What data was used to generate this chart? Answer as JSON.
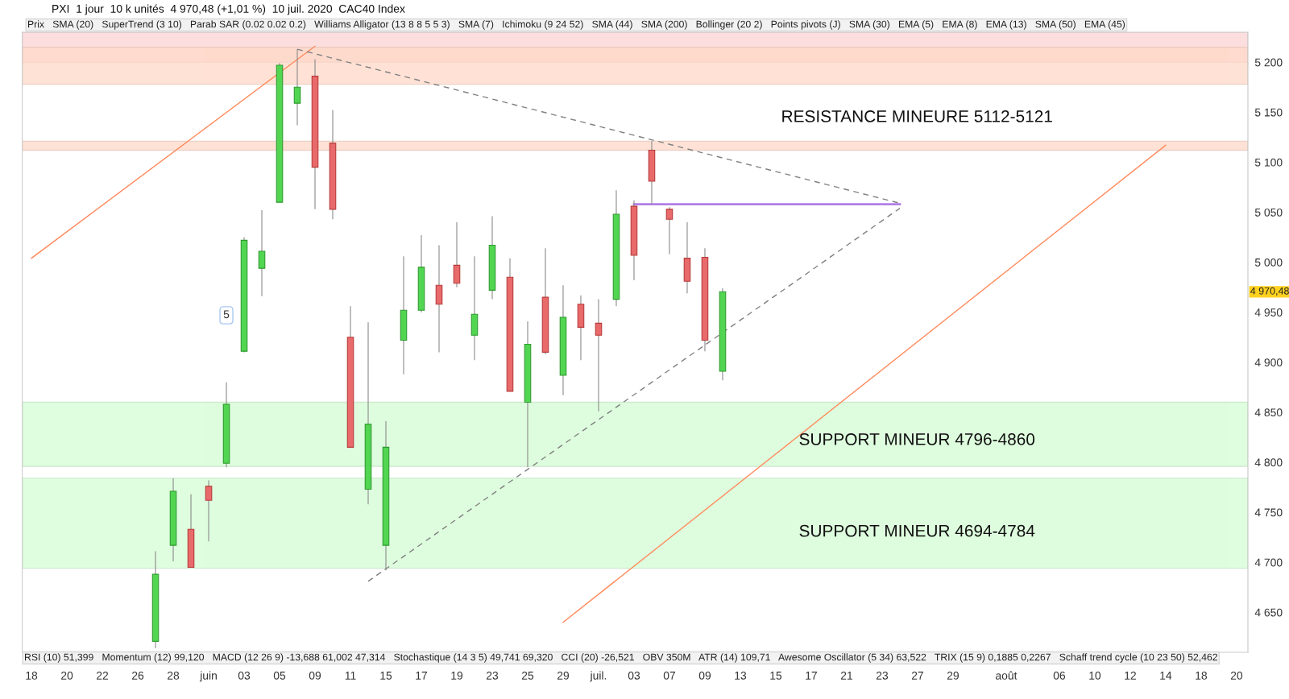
{
  "chart_data": {
    "type": "candlestick",
    "title": "PXI  1 jour  10 k unités  4 970,48 (+1,01 %)  10 juil. 2020  CAC40 Index",
    "categories": [
      "18",
      null,
      "20",
      null,
      "22",
      null,
      "26",
      null,
      "28",
      null,
      "juin",
      null,
      "03",
      null,
      "05",
      null,
      "09",
      null,
      "11",
      null,
      "15",
      null,
      "17",
      null,
      "19",
      null,
      "23",
      null,
      "25",
      null,
      "29",
      null,
      "juil.",
      null,
      "03",
      null,
      "07",
      null,
      "09",
      null,
      "13",
      null,
      "15",
      null,
      "17",
      null,
      "21",
      null,
      "23",
      null,
      "27",
      null,
      "29",
      null,
      null,
      "août",
      null,
      null,
      "06",
      null,
      "10",
      null,
      "12",
      null,
      "14",
      null,
      "18",
      null,
      "20"
    ],
    "ohlc": [
      null,
      null,
      null,
      null,
      null,
      null,
      null,
      [
        4621,
        4711,
        4614,
        4688
      ],
      [
        4717,
        4784,
        4701,
        4771
      ],
      [
        4733,
        4768,
        4695,
        4695
      ],
      [
        4776,
        4782,
        4721,
        4762
      ],
      [
        4799,
        4880,
        4795,
        4858
      ],
      [
        4911,
        5025,
        4910,
        5022
      ],
      [
        4994,
        5052,
        4966,
        5011
      ],
      [
        5060,
        5199,
        5060,
        5197
      ],
      [
        5159,
        5213,
        5137,
        5175
      ],
      [
        5186,
        5203,
        5053,
        5095
      ],
      [
        5119,
        5152,
        5043,
        5053
      ],
      [
        4925,
        4956,
        4815,
        4815
      ],
      [
        4773,
        4940,
        4758,
        4838
      ],
      [
        4717,
        4841,
        4692,
        4815
      ],
      [
        4922,
        5006,
        4888,
        4952
      ],
      [
        4952,
        5027,
        4950,
        4995
      ],
      [
        4977,
        5017,
        4910,
        4958
      ],
      [
        4997,
        5040,
        4975,
        4979
      ],
      [
        4927,
        5006,
        4902,
        4948
      ],
      [
        4972,
        5046,
        4963,
        5017
      ],
      [
        4985,
        5004,
        4871,
        4871
      ],
      [
        4860,
        4941,
        4795,
        4918
      ],
      [
        4965,
        5014,
        4908,
        4910
      ],
      [
        4887,
        4977,
        4867,
        4945
      ],
      [
        4958,
        4967,
        4902,
        4935
      ],
      [
        4939,
        4963,
        4851,
        4927
      ],
      [
        4963,
        5072,
        4956,
        5048
      ],
      [
        5056,
        5062,
        4982,
        5007
      ],
      [
        5112,
        5121,
        5058,
        5081
      ],
      [
        5053,
        5055,
        5008,
        5043
      ],
      [
        5004,
        5040,
        4969,
        4981
      ],
      [
        5005,
        5014,
        4911,
        4922
      ],
      [
        4891,
        4974,
        4882,
        4970.48
      ],
      null,
      null,
      null,
      null,
      null,
      null,
      null,
      null,
      null,
      null,
      null,
      null,
      null,
      null,
      null,
      null,
      null,
      null,
      null,
      null,
      null,
      null,
      null,
      null,
      null,
      null,
      null,
      null,
      null
    ],
    "series": [
      {
        "type": "line",
        "color": "#ff8a5c",
        "line_style": "solid",
        "values": [
          5004,
          null,
          null,
          null,
          null,
          null,
          null,
          null,
          null,
          null,
          null,
          null,
          null,
          null,
          null,
          null,
          5216,
          null,
          null,
          null,
          null,
          null,
          null,
          null,
          null,
          null,
          null,
          null,
          null,
          null,
          null,
          null,
          null,
          null,
          null,
          null,
          null,
          null,
          null,
          null,
          null,
          null,
          null,
          null,
          null,
          null,
          null,
          null,
          null,
          null,
          null,
          null,
          null,
          null,
          null,
          null,
          null,
          null,
          null,
          null,
          null,
          null,
          null,
          null,
          null,
          null,
          null,
          null,
          null
        ]
      },
      {
        "type": "line",
        "color": "#ff8a5c",
        "line_style": "solid",
        "values": [
          null,
          null,
          null,
          null,
          null,
          null,
          null,
          null,
          null,
          null,
          null,
          null,
          null,
          null,
          null,
          null,
          null,
          null,
          null,
          null,
          null,
          null,
          null,
          null,
          null,
          null,
          null,
          null,
          null,
          null,
          4640,
          null,
          null,
          null,
          null,
          null,
          null,
          null,
          null,
          null,
          null,
          null,
          null,
          null,
          null,
          null,
          null,
          null,
          null,
          null,
          null,
          null,
          null,
          null,
          null,
          null,
          null,
          null,
          null,
          null,
          null,
          null,
          null,
          null,
          5117,
          null,
          null,
          null,
          null
        ]
      },
      {
        "type": "line",
        "color": "#808080",
        "line_style": "dashed",
        "values": [
          null,
          null,
          null,
          null,
          null,
          null,
          null,
          null,
          null,
          null,
          null,
          null,
          null,
          null,
          null,
          5213,
          null,
          null,
          null,
          null,
          null,
          null,
          null,
          null,
          null,
          null,
          null,
          null,
          null,
          null,
          null,
          null,
          null,
          null,
          null,
          null,
          null,
          null,
          null,
          null,
          null,
          null,
          null,
          null,
          null,
          null,
          null,
          null,
          null,
          5059,
          null,
          null,
          null,
          null,
          null,
          null,
          null,
          null,
          null,
          null,
          null,
          null,
          null,
          null,
          null,
          null,
          null,
          null,
          null
        ]
      },
      {
        "type": "line",
        "color": "#808080",
        "line_style": "dashed",
        "values": [
          null,
          null,
          null,
          null,
          null,
          null,
          null,
          null,
          null,
          null,
          null,
          null,
          null,
          null,
          null,
          null,
          null,
          null,
          null,
          4681,
          null,
          null,
          null,
          null,
          null,
          null,
          null,
          null,
          null,
          null,
          null,
          null,
          null,
          null,
          null,
          null,
          null,
          null,
          null,
          null,
          null,
          null,
          null,
          null,
          null,
          null,
          null,
          null,
          null,
          5054,
          null,
          null,
          null,
          null,
          null,
          null,
          null,
          null,
          null,
          null,
          null,
          null,
          null,
          null,
          null,
          null,
          null,
          null,
          null
        ]
      },
      {
        "type": "line",
        "color": "#b07fe6",
        "line_style": "solid",
        "values": [
          null,
          null,
          null,
          null,
          null,
          null,
          null,
          null,
          null,
          null,
          null,
          null,
          null,
          null,
          null,
          null,
          null,
          null,
          null,
          null,
          null,
          null,
          null,
          null,
          null,
          null,
          null,
          null,
          null,
          null,
          null,
          null,
          null,
          null,
          5058,
          null,
          null,
          null,
          null,
          null,
          null,
          null,
          null,
          null,
          null,
          null,
          null,
          null,
          null,
          5058,
          null,
          null,
          null,
          null,
          null,
          null,
          null,
          null,
          null,
          null,
          null,
          null,
          null,
          null,
          null,
          null,
          null,
          null,
          null
        ]
      }
    ],
    "ylim": [
      4610,
      5230
    ],
    "yticks": [
      {
        "value": 4650,
        "label": "4 650"
      },
      {
        "value": 4700,
        "label": "4 700"
      },
      {
        "value": 4750,
        "label": "4 750"
      },
      {
        "value": 4800,
        "label": "4 800"
      },
      {
        "value": 4850,
        "label": "4 850"
      },
      {
        "value": 4900,
        "label": "4 900"
      },
      {
        "value": 4950,
        "label": "4 950"
      },
      {
        "value": 5000,
        "label": "5 000"
      },
      {
        "value": 5050,
        "label": "5 050"
      },
      {
        "value": 5100,
        "label": "5 100"
      },
      {
        "value": 5150,
        "label": "5 150"
      },
      {
        "value": 5200,
        "label": "5 200"
      }
    ],
    "bands": [
      {
        "axis": "y",
        "from": 5200,
        "to": 5230,
        "color": "#fdd3d3"
      },
      {
        "axis": "y",
        "from": 5178,
        "to": 5215,
        "color": "#ffd9c8"
      },
      {
        "axis": "y",
        "from": 5112,
        "to": 5121,
        "label": "RESISTANCE MINEURE 5112-5121",
        "color": "#ffd9c8"
      },
      {
        "axis": "y",
        "from": 4796,
        "to": 4860,
        "label": "SUPPORT MINEUR 4796-4860",
        "color": "#d4fdd4"
      },
      {
        "axis": "y",
        "from": 4694,
        "to": 4784,
        "label": "SUPPORT MINEUR 4694-4784",
        "color": "#d4fdd4"
      }
    ],
    "annotations": [
      "Prix   SMA (20)   SuperTrend (3 10)   Parab SAR (0.02 0.02 0.2)   Williams Alligator (13 8 8 5 5 3)   SMA (7)   Ichimoku (9 24 52)   SMA (44)   SMA (200)   Bollinger (20 2)   Points pivots (J)   SMA (30)   EMA (5)   EMA (8)   EMA (13)   SMA (50)   EMA (45)",
      "RSI (10) 51,399   Momentum (12) 99,120   MACD (12 26 9) -13,688 61,002 47,314   Stochastique (14 3 5) 49,741 69,320   CCI (20) -26,521   OBV 350M   ATR (14) 109,71   Awesome Oscillator (5 34) 63,522   TRIX (15 9) 0,1885 0,2267   Schaff trend cycle (10 23 50) 52,462",
      "5",
      "4 970,48"
    ]
  }
}
